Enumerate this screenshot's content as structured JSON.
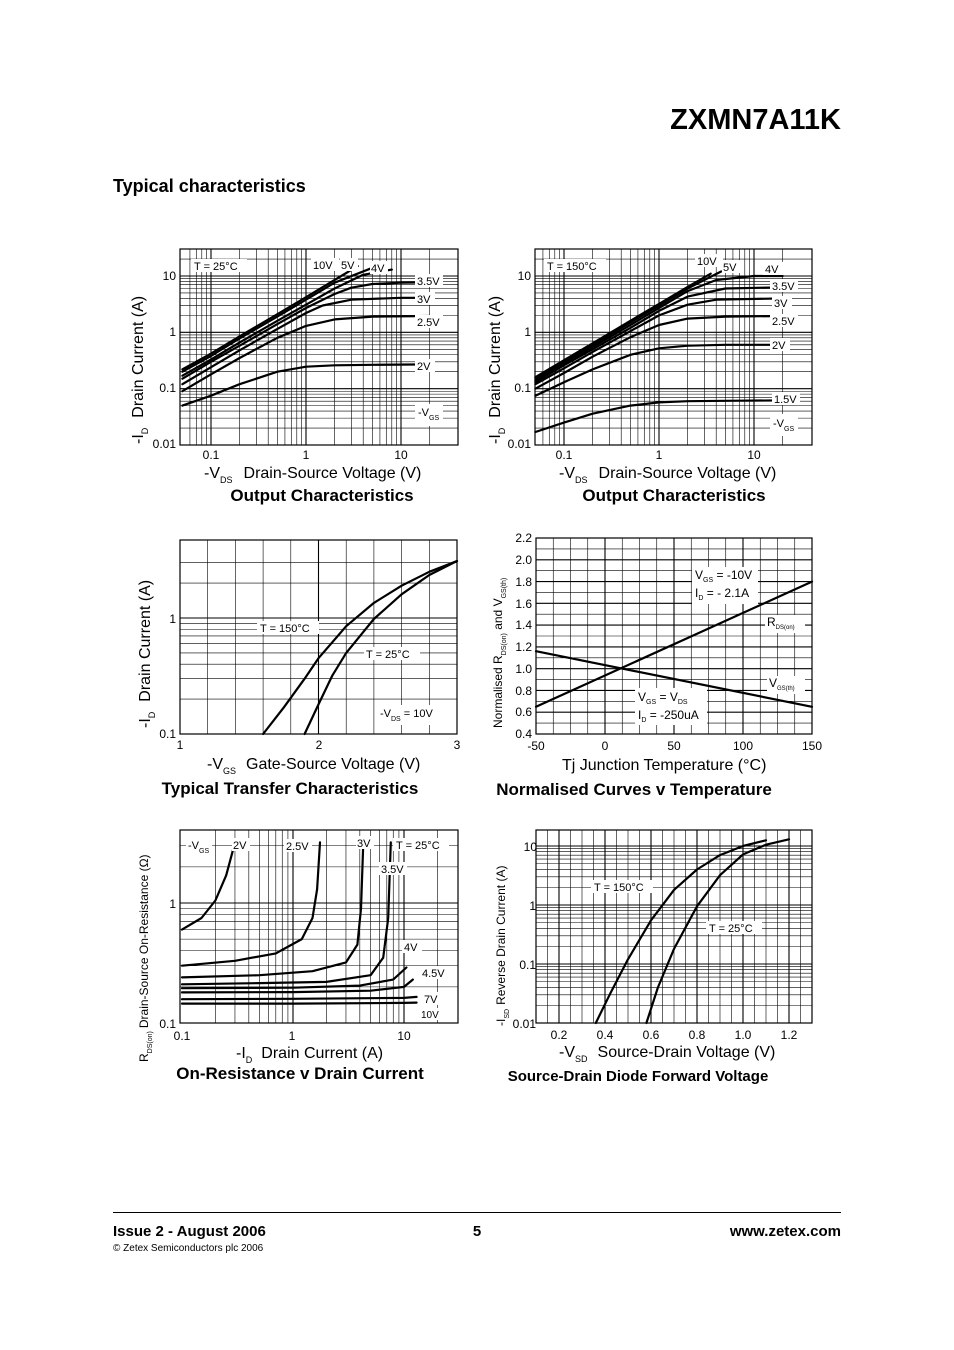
{
  "header": {
    "part_number": "ZXMN7A11K",
    "section_title": "Typical characteristics"
  },
  "footer": {
    "issue": "Issue 2 - August 2006",
    "copyright": "© Zetex Semiconductors plc 2006",
    "page": "5",
    "website": "www.zetex.com"
  },
  "chart_data": [
    {
      "id": "output_25",
      "type": "line",
      "title": "Output Characteristics",
      "x_scale": "log",
      "y_scale": "log",
      "xlim": [
        0.05,
        25
      ],
      "ylim": [
        0.01,
        40
      ],
      "x_ticks": [
        "0.1",
        "1",
        "10"
      ],
      "y_ticks": [
        "0.01",
        "0.1",
        "1",
        "10"
      ],
      "xlabel": {
        "prefix": "-V",
        "sub": "DS",
        "text": "Drain-Source Voltage (V)"
      },
      "ylabel": {
        "prefix": "-I",
        "sub": "D",
        "text": "Drain Current (A)"
      },
      "annotations": [
        "T = 25°C",
        "-V",
        "GS"
      ],
      "series": [
        {
          "name": "10V",
          "x": [
            0.05,
            0.1,
            0.2,
            0.5,
            1,
            2,
            3.5
          ],
          "y": [
            0.22,
            0.42,
            0.85,
            2.1,
            4.2,
            8.5,
            15
          ]
        },
        {
          "name": "5V",
          "x": [
            0.05,
            0.1,
            0.2,
            0.5,
            1,
            2,
            5
          ],
          "y": [
            0.2,
            0.38,
            0.78,
            1.9,
            3.8,
            7.6,
            14
          ]
        },
        {
          "name": "4V",
          "x": [
            0.05,
            0.1,
            0.2,
            0.5,
            1,
            2,
            4,
            8
          ],
          "y": [
            0.17,
            0.33,
            0.66,
            1.6,
            3.1,
            6,
            10.5,
            13
          ]
        },
        {
          "name": "3.5V",
          "x": [
            0.05,
            0.1,
            0.2,
            0.5,
            1,
            2,
            3,
            5,
            10,
            20
          ],
          "y": [
            0.15,
            0.3,
            0.58,
            1.4,
            2.7,
            4.8,
            6.2,
            7.2,
            7.6,
            7.7
          ]
        },
        {
          "name": "3V",
          "x": [
            0.05,
            0.1,
            0.2,
            0.5,
            1,
            1.5,
            3,
            10,
            20
          ],
          "y": [
            0.12,
            0.24,
            0.48,
            1.15,
            2.2,
            3,
            3.8,
            4.1,
            4.1
          ]
        },
        {
          "name": "2.5V",
          "x": [
            0.05,
            0.1,
            0.2,
            0.5,
            1,
            2,
            5,
            20
          ],
          "y": [
            0.09,
            0.18,
            0.35,
            0.8,
            1.3,
            1.7,
            1.9,
            1.95
          ]
        },
        {
          "name": "2V",
          "x": [
            0.05,
            0.1,
            0.2,
            0.5,
            1,
            2,
            5,
            20
          ],
          "y": [
            0.05,
            0.075,
            0.12,
            0.2,
            0.245,
            0.26,
            0.265,
            0.27
          ]
        }
      ]
    },
    {
      "id": "output_150",
      "type": "line",
      "title": "Output Characteristics",
      "x_scale": "log",
      "y_scale": "log",
      "xlim": [
        0.05,
        25
      ],
      "ylim": [
        0.01,
        40
      ],
      "x_ticks": [
        "0.1",
        "1",
        "10"
      ],
      "y_ticks": [
        "0.01",
        "0.1",
        "1",
        "10"
      ],
      "xlabel": {
        "prefix": "-V",
        "sub": "DS",
        "text": "Drain-Source Voltage (V)"
      },
      "ylabel": {
        "prefix": "-I",
        "sub": "D",
        "text": "Drain Current (A)"
      },
      "annotations": [
        "T = 150°C",
        "-V",
        "GS"
      ],
      "series": [
        {
          "name": "10V",
          "x": [
            0.05,
            0.1,
            0.2,
            0.5,
            1,
            2,
            3.5
          ],
          "y": [
            0.16,
            0.32,
            0.64,
            1.6,
            3.2,
            6.4,
            11
          ]
        },
        {
          "name": "5V",
          "x": [
            0.05,
            0.1,
            0.2,
            0.5,
            1,
            2,
            4.5
          ],
          "y": [
            0.15,
            0.3,
            0.6,
            1.5,
            3,
            6,
            12
          ]
        },
        {
          "name": "4V",
          "x": [
            0.05,
            0.1,
            0.2,
            0.5,
            1,
            2,
            4,
            10,
            20
          ],
          "y": [
            0.14,
            0.28,
            0.55,
            1.35,
            2.7,
            5.4,
            8.5,
            10,
            10
          ]
        },
        {
          "name": "3.5V",
          "x": [
            0.05,
            0.1,
            0.2,
            0.5,
            1,
            2,
            5,
            20
          ],
          "y": [
            0.13,
            0.26,
            0.5,
            1.2,
            2.4,
            4.3,
            6,
            6.3
          ]
        },
        {
          "name": "3V",
          "x": [
            0.05,
            0.1,
            0.2,
            0.5,
            1,
            2,
            4,
            20
          ],
          "y": [
            0.12,
            0.23,
            0.45,
            1.05,
            2,
            3.1,
            3.8,
            4
          ]
        },
        {
          "name": "2.5V",
          "x": [
            0.05,
            0.1,
            0.2,
            0.5,
            1,
            2,
            5,
            20
          ],
          "y": [
            0.1,
            0.19,
            0.37,
            0.82,
            1.35,
            1.75,
            1.9,
            1.95
          ]
        },
        {
          "name": "2V",
          "x": [
            0.05,
            0.1,
            0.2,
            0.5,
            1,
            2,
            5,
            20
          ],
          "y": [
            0.075,
            0.13,
            0.22,
            0.4,
            0.52,
            0.58,
            0.6,
            0.6
          ]
        },
        {
          "name": "1.5V",
          "x": [
            0.05,
            0.1,
            0.2,
            0.5,
            1,
            2,
            5,
            20
          ],
          "y": [
            0.017,
            0.025,
            0.036,
            0.05,
            0.057,
            0.06,
            0.061,
            0.062
          ]
        }
      ]
    },
    {
      "id": "transfer",
      "type": "line",
      "title": "Typical Transfer Characteristics",
      "x_scale": "linear",
      "y_scale": "log",
      "xlim": [
        1,
        3
      ],
      "ylim": [
        0.1,
        3.1
      ],
      "x_ticks": [
        "1",
        "2",
        "3"
      ],
      "y_ticks": [
        "0.1",
        "1"
      ],
      "xlabel": {
        "prefix": "-V",
        "sub": "GS",
        "text": "Gate-Source Voltage (V)"
      },
      "ylabel": {
        "prefix": "-I",
        "sub": "D",
        "text": "Drain Current (A)"
      },
      "annotations": [
        "-V",
        "DS",
        "= 10V"
      ],
      "series": [
        {
          "name": "T = 150°C",
          "x": [
            1.6,
            1.75,
            1.9,
            2.0,
            2.2,
            2.4,
            2.6,
            2.8,
            3.0
          ],
          "y": [
            0.1,
            0.17,
            0.3,
            0.45,
            0.85,
            1.35,
            1.9,
            2.5,
            3.1
          ]
        },
        {
          "name": "T = 25°C",
          "x": [
            1.9,
            2.0,
            2.1,
            2.2,
            2.4,
            2.6,
            2.8,
            3.0
          ],
          "y": [
            0.1,
            0.18,
            0.32,
            0.5,
            0.98,
            1.6,
            2.35,
            3.1
          ]
        }
      ]
    },
    {
      "id": "normalised",
      "type": "line",
      "title": "Normalised Curves v Temperature",
      "x_scale": "linear",
      "y_scale": "linear",
      "xlim": [
        -50,
        150
      ],
      "ylim": [
        0.4,
        2.2
      ],
      "x_ticks": [
        "-50",
        "0",
        "50",
        "100",
        "150"
      ],
      "y_ticks": [
        "0.4",
        "0.6",
        "0.8",
        "1.0",
        "1.2",
        "1.4",
        "1.6",
        "1.8",
        "2.0",
        "2.2"
      ],
      "xlabel": {
        "text": "Tj  Junction Temperature (°C)"
      },
      "ylabel": {
        "text": "Normalised R",
        "sub1": "DS(on)",
        "mid": " and V",
        "sub2": "GS(th)"
      },
      "annotations": [
        "V",
        "GS",
        " = -10V",
        "I",
        "D",
        " = - 2.1A",
        "V",
        "GS",
        " = V",
        "DS",
        "I",
        "D",
        " = -250uA"
      ],
      "series": [
        {
          "name": "R",
          "sub": "DS(on)",
          "x": [
            -50,
            150
          ],
          "y": [
            0.65,
            1.8
          ]
        },
        {
          "name": "V",
          "sub": "GS(th)",
          "x": [
            -50,
            150
          ],
          "y": [
            1.16,
            0.65
          ]
        }
      ]
    },
    {
      "id": "on_resistance",
      "type": "line",
      "title": "On-Resistance v Drain Current",
      "x_scale": "log",
      "y_scale": "log",
      "xlim": [
        0.1,
        25
      ],
      "ylim": [
        0.1,
        3.2
      ],
      "x_ticks": [
        "0.1",
        "1",
        "10"
      ],
      "y_ticks": [
        "0.1",
        "1"
      ],
      "xlabel": {
        "prefix": "-I",
        "sub": "D",
        "text": "Drain Current (A)"
      },
      "ylabel": {
        "prefix": "R",
        "sub": "DS(on)",
        "text": "Drain-Source On-Resistance (Ω)"
      },
      "annotations": [
        "-V",
        "GS",
        "T = 25°C"
      ],
      "series": [
        {
          "name": "2V",
          "x": [
            0.1,
            0.15,
            0.2,
            0.25,
            0.28,
            0.3
          ],
          "y": [
            0.6,
            0.75,
            1.05,
            1.7,
            2.5,
            3.2
          ]
        },
        {
          "name": "2.5V",
          "x": [
            0.1,
            0.3,
            0.7,
            1.2,
            1.5,
            1.65,
            1.75
          ],
          "y": [
            0.3,
            0.33,
            0.38,
            0.5,
            0.75,
            1.3,
            3.2
          ]
        },
        {
          "name": "3V",
          "x": [
            0.1,
            0.5,
            1.5,
            3,
            3.8,
            4.1,
            4.3
          ],
          "y": [
            0.24,
            0.25,
            0.27,
            0.32,
            0.45,
            0.9,
            3.2
          ]
        },
        {
          "name": "3.5V",
          "x": [
            0.1,
            0.5,
            2,
            5,
            6.5,
            7.2,
            7.6
          ],
          "y": [
            0.21,
            0.215,
            0.22,
            0.25,
            0.35,
            0.75,
            3.2
          ]
        },
        {
          "name": "4V",
          "x": [
            0.1,
            1,
            4,
            8,
            10.5
          ],
          "y": [
            0.195,
            0.197,
            0.205,
            0.23,
            0.29
          ]
        },
        {
          "name": "4.5V",
          "x": [
            0.1,
            1,
            5,
            10,
            12
          ],
          "y": [
            0.18,
            0.181,
            0.186,
            0.2,
            0.23
          ]
        },
        {
          "name": "7V",
          "x": [
            0.1,
            1,
            10,
            13
          ],
          "y": [
            0.158,
            0.159,
            0.162,
            0.165
          ]
        },
        {
          "name": "10V",
          "x": [
            0.1,
            1,
            10,
            13
          ],
          "y": [
            0.145,
            0.145,
            0.147,
            0.148
          ]
        }
      ]
    },
    {
      "id": "diode",
      "type": "line",
      "title": "Source-Drain Diode Forward Voltage",
      "x_scale": "linear",
      "y_scale": "log",
      "xlim": [
        0.1,
        1.3
      ],
      "ylim": [
        0.01,
        15
      ],
      "x_ticks": [
        "0.2",
        "0.4",
        "0.6",
        "0.8",
        "1.0",
        "1.2"
      ],
      "y_ticks": [
        "0.01",
        "0.1",
        "1",
        "10"
      ],
      "xlabel": {
        "prefix": "-V",
        "sub": "SD",
        "text": "Source-Drain Voltage (V)"
      },
      "ylabel": {
        "prefix": "-I",
        "sub": "SD",
        "text": "Reverse Drain Current (A)"
      },
      "annotations": [],
      "series": [
        {
          "name": "T = 150°C",
          "x": [
            0.36,
            0.42,
            0.5,
            0.6,
            0.7,
            0.8,
            0.9,
            1.0,
            1.1
          ],
          "y": [
            0.01,
            0.03,
            0.12,
            0.55,
            1.8,
            4,
            7,
            10,
            12.5
          ]
        },
        {
          "name": "T = 25°C",
          "x": [
            0.58,
            0.63,
            0.7,
            0.8,
            0.9,
            1.0,
            1.1,
            1.2
          ],
          "y": [
            0.01,
            0.04,
            0.18,
            0.95,
            3.2,
            7.2,
            10.5,
            13
          ]
        }
      ]
    }
  ]
}
